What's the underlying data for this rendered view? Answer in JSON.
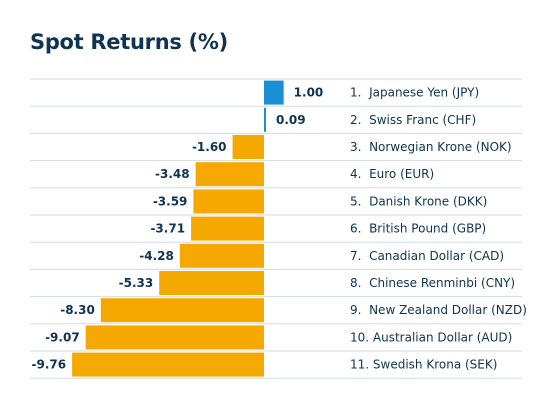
{
  "title": "Spot Returns (%)",
  "colors": {
    "positive": "#1a8fd6",
    "negative": "#f5a800",
    "text": "#0f3350",
    "divider": "#d4dbe1"
  },
  "chart_data": {
    "type": "bar",
    "orientation": "horizontal",
    "title": "Spot Returns (%)",
    "categories": [
      "1.  Japanese Yen (JPY)",
      "2.  Swiss Franc (CHF)",
      "3.  Norwegian Krone (NOK)",
      "4.  Euro (EUR)",
      "5.  Danish Krone (DKK)",
      "6.  British Pound (GBP)",
      "7.  Canadian Dollar (CAD)",
      "8.  Chinese Renminbi (CNY)",
      "9.  New Zealand Dollar (NZD)",
      "10. Australian Dollar (AUD)",
      "11. Swedish Krona (SEK)"
    ],
    "values": [
      1.0,
      0.09,
      -1.6,
      -3.48,
      -3.59,
      -3.71,
      -4.28,
      -5.33,
      -8.3,
      -9.07,
      -9.76
    ],
    "value_labels": [
      "1.00",
      "0.09",
      "-1.60",
      "-3.48",
      "-3.59",
      "-3.71",
      "-4.28",
      "-5.33",
      "-8.30",
      "-9.07",
      "-9.76"
    ],
    "xlim": [
      -9.76,
      1.0
    ],
    "grid": false,
    "legend": "none"
  }
}
